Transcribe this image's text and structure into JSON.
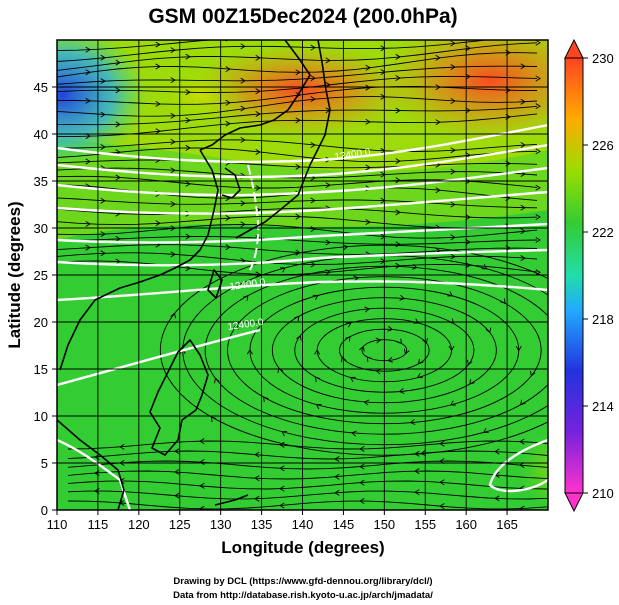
{
  "chart_data": {
    "type": "heatmap",
    "title": "GSM 00Z15Dec2024 (200.0hPa)",
    "xlabel": "Longitude (degrees)",
    "ylabel": "Latitude  (degrees)",
    "xlim": [
      110,
      170
    ],
    "ylim": [
      0,
      50
    ],
    "x_ticks": [
      "110",
      "115",
      "120",
      "125",
      "130",
      "135",
      "140",
      "145",
      "150",
      "155",
      "160",
      "165"
    ],
    "y_ticks": [
      "0",
      "5",
      "10",
      "15",
      "20",
      "25",
      "30",
      "35",
      "40",
      "45"
    ],
    "colorbar": {
      "min": 210,
      "max": 230,
      "ticks": [
        "210",
        "214",
        "218",
        "222",
        "226",
        "230"
      ],
      "colors": [
        "#ff33cc",
        "#3333ee",
        "#22aaff",
        "#22ddaa",
        "#33cc33",
        "#99dd00",
        "#ffaa00",
        "#ff4422"
      ]
    },
    "grid": true,
    "contour_labels": [
      "12400.0",
      "12400.0",
      "12400.0"
    ],
    "credits": [
      "Drawing by DCL (https://www.gfd-dennou.org/library/dcl/)",
      "Data from http://database.rish.kyoto-u.ac.jp/arch/jmadata/"
    ]
  }
}
